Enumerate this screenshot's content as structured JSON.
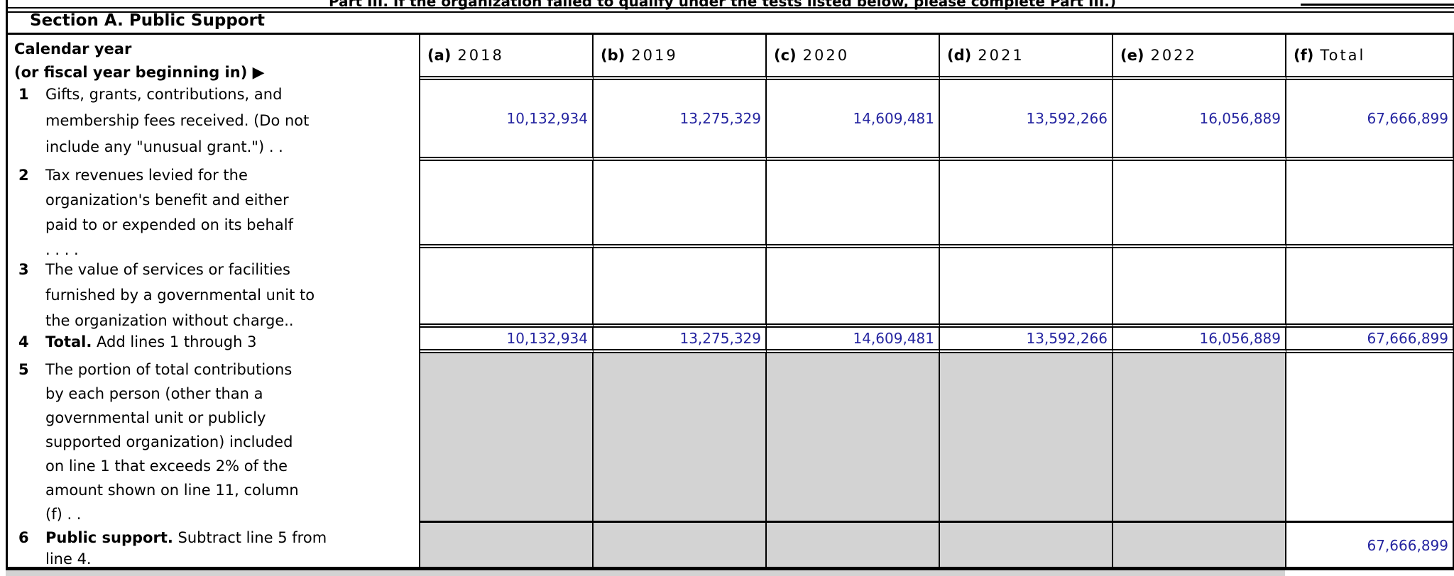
{
  "top_clipped_text": "Part III. If the organization failed to qualify under the tests listed below, please complete Part III.)",
  "section_title": "Section A. Public Support",
  "colors": {
    "value_text": "#2424a0",
    "shaded_cell": "#d3d3d3"
  },
  "table": {
    "header": {
      "label_line1": "Calendar year",
      "label_line2": "(or fiscal year beginning in) ",
      "arrow": "▶",
      "columns": [
        {
          "letter": "(a)",
          "year": "2018"
        },
        {
          "letter": "(b)",
          "year": "2019"
        },
        {
          "letter": "(c)",
          "year": "2020"
        },
        {
          "letter": "(d)",
          "year": "2021"
        },
        {
          "letter": "(e)",
          "year": "2022"
        },
        {
          "letter": "(f)",
          "year": "Total"
        }
      ]
    },
    "rows": [
      {
        "num": "1",
        "label_lines": [
          "Gifts, grants, contributions, and",
          "membership fees received. (Do not",
          "include any \"unusual grant.\") .  ."
        ],
        "values": [
          "10,132,934",
          "13,275,329",
          "14,609,481",
          "13,592,266",
          "16,056,889",
          "67,666,899"
        ]
      },
      {
        "num": "2",
        "label_lines": [
          "Tax revenues levied for the",
          "organization's benefit and either",
          "paid to or expended on its behalf",
          ".  .  .  ."
        ],
        "values": [
          "",
          "",
          "",
          "",
          "",
          ""
        ]
      },
      {
        "num": "3",
        "label_lines": [
          "The value of services or facilities",
          "furnished by a governmental unit to",
          "the organization without charge.."
        ],
        "values": [
          "",
          "",
          "",
          "",
          "",
          ""
        ]
      },
      {
        "num": "4",
        "label_bold": "Total.",
        "label_rest": " Add lines 1 through 3",
        "values": [
          "10,132,934",
          "13,275,329",
          "14,609,481",
          "13,592,266",
          "16,056,889",
          "67,666,899"
        ]
      },
      {
        "num": "5",
        "label_lines": [
          "The portion of total contributions",
          "by each person (other than a",
          "governmental unit or publicly",
          "supported organization) included",
          "on line 1 that exceeds 2% of the",
          "amount shown on line 11, column",
          "(f) .  ."
        ],
        "values": [
          "",
          "",
          "",
          "",
          "",
          ""
        ]
      },
      {
        "num": "6",
        "label_bold": "Public support.",
        "label_rest": " Subtract line 5 from",
        "label_line2": "line 4.",
        "values": [
          "",
          "",
          "",
          "",
          "",
          "67,666,899"
        ]
      }
    ]
  }
}
